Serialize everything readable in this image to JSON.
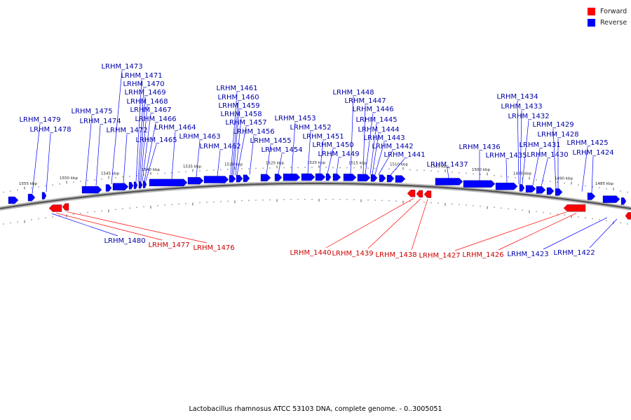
{
  "legend": [
    {
      "label": "Forward",
      "color": "#ff0000"
    },
    {
      "label": "Reverse",
      "color": "#0000ff"
    }
  ],
  "caption": "Lactobacillus rhamnosus ATCC 53103 DNA, complete genome. - 0..3005051",
  "colors": {
    "forward": "#ff0000",
    "reverse": "#0000ff",
    "backbone": "#888888"
  },
  "kbp_ticks": [
    "1555 kbp",
    "1550 kbp",
    "1545 kbp",
    "1540 kbp",
    "1535 kbp",
    "1530 kbp",
    "1525 kbp",
    "1520 kbp",
    "1515 kbp",
    "1510 kbp",
    "1505 kbp",
    "1500 kbp",
    "1495 kbp",
    "1490 kbp",
    "1485 kbp"
  ],
  "reverse_genes": [
    "LRHM_1479",
    "LRHM_1478",
    "LRHM_1475",
    "LRHM_1474",
    "LRHM_1473",
    "LRHM_1472",
    "LRHM_1471",
    "LRHM_1470",
    "LRHM_1469",
    "LRHM_1468",
    "LRHM_1467",
    "LRHM_1466",
    "LRHM_1465",
    "LRHM_1464",
    "LRHM_1463",
    "LRHM_1462",
    "LRHM_1461",
    "LRHM_1460",
    "LRHM_1459",
    "LRHM_1458",
    "LRHM_1457",
    "LRHM_1456",
    "LRHM_1455",
    "LRHM_1454",
    "LRHM_1453",
    "LRHM_1452",
    "LRHM_1451",
    "LRHM_1450",
    "LRHM_1449",
    "LRHM_1448",
    "LRHM_1447",
    "LRHM_1446",
    "LRHM_1445",
    "LRHM_1444",
    "LRHM_1443",
    "LRHM_1442",
    "LRHM_1441",
    "LRHM_1437",
    "LRHM_1436",
    "LRHM_1435",
    "LRHM_1434",
    "LRHM_1433",
    "LRHM_1432",
    "LRHM_1431",
    "LRHM_1430",
    "LRHM_1429",
    "LRHM_1428",
    "LRHM_1425",
    "LRHM_1424"
  ],
  "lower_genes": [
    {
      "label": "LRHM_1480",
      "strand": "reverse"
    },
    {
      "label": "LRHM_1477",
      "strand": "forward"
    },
    {
      "label": "LRHM_1476",
      "strand": "forward"
    },
    {
      "label": "LRHM_1440",
      "strand": "forward"
    },
    {
      "label": "LRHM_1439",
      "strand": "forward"
    },
    {
      "label": "LRHM_1438",
      "strand": "forward"
    },
    {
      "label": "LRHM_1427",
      "strand": "forward"
    },
    {
      "label": "LRHM_1426",
      "strand": "forward"
    },
    {
      "label": "LRHM_1423",
      "strand": "reverse"
    },
    {
      "label": "LRHM_1422",
      "strand": "reverse"
    }
  ]
}
